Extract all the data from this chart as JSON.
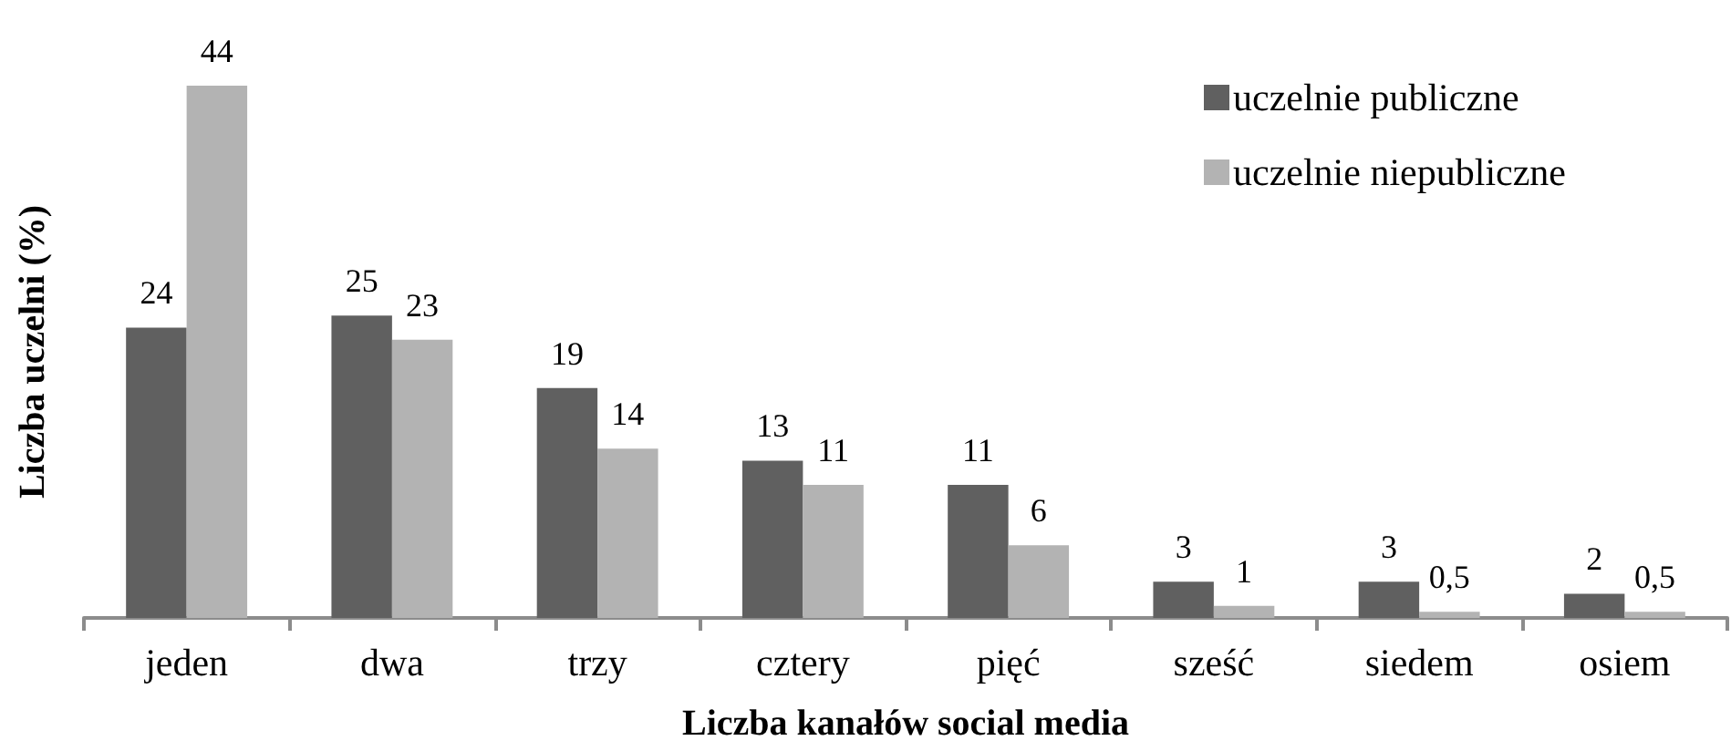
{
  "chart_data": {
    "type": "bar",
    "xlabel": "Liczba kanałów social media",
    "ylabel": "Liczba uczelni (%)",
    "categories": [
      "jeden",
      "dwa",
      "trzy",
      "cztery",
      "pięć",
      "sześć",
      "siedem",
      "osiem"
    ],
    "series": [
      {
        "name": "uczelnie publiczne",
        "color": "#606060",
        "values": [
          24,
          25,
          19,
          13,
          11,
          3,
          3,
          2
        ],
        "value_labels": [
          "24",
          "25",
          "19",
          "13",
          "11",
          "3",
          "3",
          "2"
        ]
      },
      {
        "name": "uczelnie niepubliczne",
        "color": "#b3b3b3",
        "values": [
          44,
          23,
          14,
          11,
          6,
          1,
          0.5,
          0.5
        ],
        "value_labels": [
          "44",
          "23",
          "14",
          "11",
          "6",
          "1",
          "0,5",
          "0,5"
        ]
      }
    ],
    "legend": "top right",
    "tick_labels": "x"
  }
}
